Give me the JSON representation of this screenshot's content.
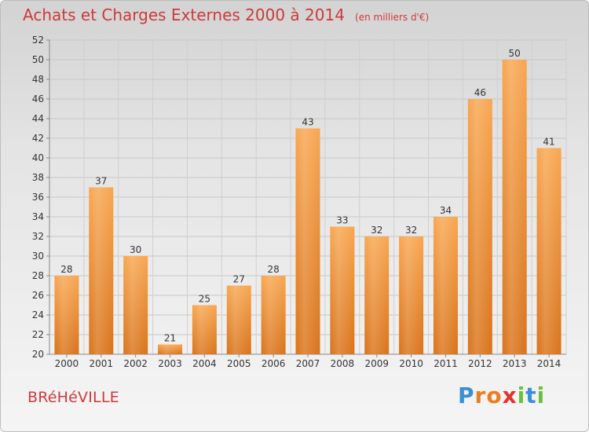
{
  "title": "Achats et Charges Externes 2000 à 2014",
  "subtitle": "(en milliers d'€)",
  "commune": "BRéHéVILLE",
  "logo": {
    "text": "Proxiti",
    "letters": [
      {
        "ch": "P",
        "color": "#3a8fd6"
      },
      {
        "ch": "r",
        "color": "#e67e22"
      },
      {
        "ch": "o",
        "color": "#e67e22"
      },
      {
        "ch": "x",
        "color": "#e0342c"
      },
      {
        "ch": "i",
        "color": "#6cbf3a"
      },
      {
        "ch": "t",
        "color": "#3a8fd6"
      },
      {
        "ch": "i",
        "color": "#6cbf3a"
      }
    ]
  },
  "chart_data": {
    "type": "bar",
    "categories": [
      "2000",
      "2001",
      "2002",
      "2003",
      "2004",
      "2005",
      "2006",
      "2007",
      "2008",
      "2009",
      "2010",
      "2011",
      "2012",
      "2013",
      "2014"
    ],
    "values": [
      28,
      37,
      30,
      21,
      25,
      27,
      28,
      43,
      33,
      32,
      32,
      34,
      46,
      50,
      41
    ],
    "ylim": [
      20,
      52
    ],
    "yticks": [
      20,
      22,
      24,
      26,
      28,
      30,
      32,
      34,
      36,
      38,
      40,
      42,
      44,
      46,
      48,
      50,
      52
    ],
    "grid": true,
    "bar_color": "#f0922e",
    "title": "Achats et Charges Externes 2000 à 2014",
    "subtitle": "(en milliers d'€)"
  }
}
